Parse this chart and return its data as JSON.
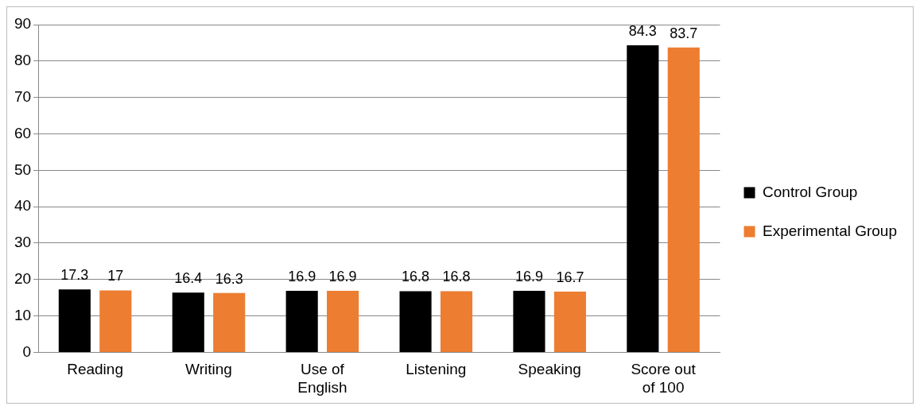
{
  "chart_data": {
    "type": "bar",
    "categories": [
      "Reading",
      "Writing",
      "Use of\nEnglish",
      "Listening",
      "Speaking",
      "Score out\nof 100"
    ],
    "series": [
      {
        "name": "Control Group",
        "color": "#000000",
        "values": [
          17.3,
          16.4,
          16.9,
          16.8,
          16.9,
          84.3
        ]
      },
      {
        "name": "Experimental Group",
        "color": "#ed7d31",
        "values": [
          17,
          16.3,
          16.9,
          16.8,
          16.7,
          83.7
        ]
      }
    ],
    "ylim": [
      0,
      90
    ],
    "yticks": [
      0,
      10,
      20,
      30,
      40,
      50,
      60,
      70,
      80,
      90
    ],
    "grid": "y",
    "legend": "right",
    "data_labels": true
  }
}
